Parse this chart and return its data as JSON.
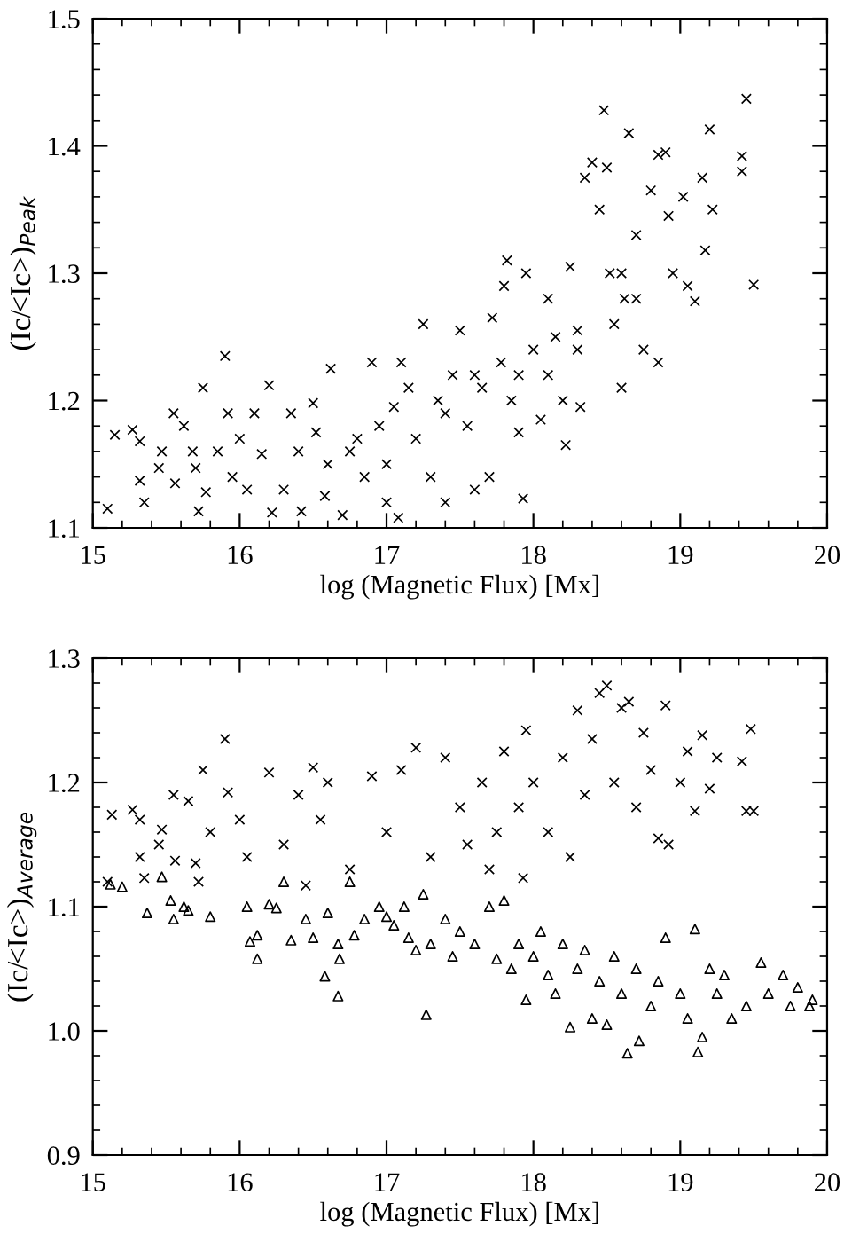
{
  "chart_data": [
    {
      "type": "scatter",
      "xlabel": "log (Magnetic Flux) [Mx]",
      "ylabel": "(Ic/<Ic>)$_{Peak}$",
      "xlim": [
        15,
        20
      ],
      "ylim": [
        1.1,
        1.5
      ],
      "xticks": [
        15,
        16,
        17,
        18,
        19,
        20
      ],
      "yticks": [
        1.1,
        1.2,
        1.3,
        1.4,
        1.5
      ],
      "grid": false,
      "legend": false,
      "series": [
        {
          "color": "#000000",
          "marker": "cross",
          "x": [
            15.1,
            15.15,
            15.27,
            15.32,
            15.32,
            15.35,
            15.45,
            15.47,
            15.55,
            15.56,
            15.62,
            15.68,
            15.7,
            15.72,
            15.75,
            15.77,
            15.85,
            15.9,
            15.92,
            15.95,
            16.0,
            16.05,
            16.1,
            16.15,
            16.2,
            16.22,
            16.3,
            16.35,
            16.4,
            16.42,
            16.5,
            16.52,
            16.58,
            16.62,
            16.7,
            16.75,
            16.85,
            16.9,
            16.95,
            17.0,
            17.05,
            17.08,
            17.1,
            17.15,
            17.25,
            17.3,
            17.35,
            17.4,
            17.45,
            17.5,
            17.55,
            17.6,
            17.65,
            17.7,
            17.72,
            17.78,
            17.8,
            17.82,
            17.85,
            17.9,
            17.93,
            17.95,
            18.0,
            18.05,
            18.1,
            18.15,
            18.2,
            18.22,
            18.25,
            18.3,
            18.32,
            18.35,
            18.4,
            18.45,
            18.48,
            18.5,
            18.52,
            18.55,
            18.6,
            18.62,
            18.65,
            18.7,
            18.75,
            18.8,
            18.85,
            18.85,
            18.9,
            18.92,
            18.95,
            19.02,
            19.05,
            19.1,
            19.15,
            19.17,
            19.2,
            19.22,
            19.42,
            19.42,
            19.45,
            19.5,
            16.6,
            16.8,
            17.0,
            17.2,
            17.4,
            17.6,
            17.9,
            18.1,
            18.3,
            18.6,
            18.7
          ],
          "values": [
            1.115,
            1.173,
            1.177,
            1.168,
            1.137,
            1.12,
            1.147,
            1.16,
            1.19,
            1.135,
            1.18,
            1.16,
            1.147,
            1.113,
            1.21,
            1.128,
            1.16,
            1.235,
            1.19,
            1.14,
            1.17,
            1.13,
            1.19,
            1.158,
            1.212,
            1.112,
            1.13,
            1.19,
            1.16,
            1.113,
            1.198,
            1.175,
            1.125,
            1.225,
            1.11,
            1.16,
            1.14,
            1.23,
            1.18,
            1.15,
            1.195,
            1.108,
            1.23,
            1.21,
            1.26,
            1.14,
            1.2,
            1.12,
            1.22,
            1.255,
            1.18,
            1.13,
            1.21,
            1.14,
            1.265,
            1.23,
            1.29,
            1.31,
            1.2,
            1.175,
            1.123,
            1.3,
            1.24,
            1.185,
            1.28,
            1.25,
            1.2,
            1.165,
            1.305,
            1.255,
            1.195,
            1.375,
            1.387,
            1.35,
            1.428,
            1.383,
            1.3,
            1.26,
            1.21,
            1.28,
            1.41,
            1.33,
            1.24,
            1.365,
            1.393,
            1.23,
            1.395,
            1.345,
            1.3,
            1.36,
            1.29,
            1.278,
            1.375,
            1.318,
            1.413,
            1.35,
            1.392,
            1.38,
            1.437,
            1.291,
            1.15,
            1.17,
            1.12,
            1.17,
            1.19,
            1.22,
            1.22,
            1.22,
            1.24,
            1.3,
            1.28
          ]
        }
      ]
    },
    {
      "type": "scatter",
      "xlabel": "log (Magnetic Flux) [Mx]",
      "ylabel": "(Ic/<Ic>)$_{Average}$",
      "xlim": [
        15,
        20
      ],
      "ylim": [
        0.9,
        1.3
      ],
      "xticks": [
        15,
        16,
        17,
        18,
        19,
        20
      ],
      "yticks": [
        0.9,
        {
          "value": 1.0,
          "label": "1.0"
        },
        1.1,
        1.2,
        1.3
      ],
      "grid": false,
      "legend": false,
      "series": [
        {
          "color": "#000000",
          "marker": "cross",
          "x": [
            15.1,
            15.13,
            15.27,
            15.32,
            15.32,
            15.35,
            15.45,
            15.47,
            15.55,
            15.56,
            15.65,
            15.7,
            15.72,
            15.75,
            15.8,
            15.9,
            15.92,
            16.0,
            16.05,
            16.2,
            16.3,
            16.4,
            16.45,
            16.5,
            16.55,
            16.6,
            16.75,
            16.9,
            17.0,
            17.1,
            17.2,
            17.3,
            17.4,
            17.5,
            17.55,
            17.65,
            17.7,
            17.75,
            17.8,
            17.9,
            17.95,
            17.93,
            18.0,
            18.1,
            18.2,
            18.25,
            18.3,
            18.35,
            18.4,
            18.45,
            18.5,
            18.55,
            18.6,
            18.65,
            18.7,
            18.75,
            18.8,
            18.85,
            18.9,
            18.92,
            19.0,
            19.05,
            19.1,
            19.15,
            19.2,
            19.25,
            19.42,
            19.45,
            19.48,
            19.5
          ],
          "values": [
            1.12,
            1.174,
            1.178,
            1.17,
            1.14,
            1.123,
            1.15,
            1.162,
            1.19,
            1.137,
            1.185,
            1.135,
            1.12,
            1.21,
            1.16,
            1.235,
            1.192,
            1.17,
            1.14,
            1.208,
            1.15,
            1.19,
            1.117,
            1.212,
            1.17,
            1.2,
            1.13,
            1.205,
            1.16,
            1.21,
            1.228,
            1.14,
            1.22,
            1.18,
            1.15,
            1.2,
            1.13,
            1.16,
            1.225,
            1.18,
            1.242,
            1.123,
            1.2,
            1.16,
            1.22,
            1.14,
            1.258,
            1.19,
            1.235,
            1.272,
            1.278,
            1.2,
            1.26,
            1.265,
            1.18,
            1.24,
            1.21,
            1.155,
            1.262,
            1.15,
            1.2,
            1.225,
            1.177,
            1.238,
            1.195,
            1.22,
            1.217,
            1.177,
            1.243,
            1.177
          ]
        },
        {
          "color": "#000000",
          "marker": "triangle",
          "x": [
            15.12,
            15.2,
            15.37,
            15.47,
            15.53,
            15.55,
            15.62,
            15.65,
            15.8,
            16.05,
            16.07,
            16.12,
            16.12,
            16.2,
            16.25,
            16.3,
            16.35,
            16.45,
            16.5,
            16.58,
            16.6,
            16.67,
            16.67,
            16.68,
            16.75,
            16.78,
            16.85,
            16.95,
            17.0,
            17.05,
            17.12,
            17.15,
            17.2,
            17.25,
            17.27,
            17.3,
            17.4,
            17.45,
            17.5,
            17.6,
            17.7,
            17.75,
            17.8,
            17.85,
            17.9,
            17.95,
            18.0,
            18.05,
            18.1,
            18.15,
            18.2,
            18.25,
            18.3,
            18.35,
            18.4,
            18.45,
            18.5,
            18.55,
            18.6,
            18.64,
            18.7,
            18.72,
            18.8,
            18.85,
            18.9,
            19.0,
            19.05,
            19.1,
            19.12,
            19.15,
            19.2,
            19.25,
            19.3,
            19.35,
            19.45,
            19.55,
            19.6,
            19.7,
            19.75,
            19.8,
            19.88,
            19.9
          ],
          "values": [
            1.118,
            1.116,
            1.095,
            1.124,
            1.105,
            1.09,
            1.1,
            1.097,
            1.092,
            1.1,
            1.072,
            1.077,
            1.058,
            1.102,
            1.099,
            1.12,
            1.073,
            1.09,
            1.075,
            1.044,
            1.095,
            1.07,
            1.028,
            1.058,
            1.12,
            1.077,
            1.09,
            1.1,
            1.092,
            1.085,
            1.1,
            1.075,
            1.065,
            1.11,
            1.013,
            1.07,
            1.09,
            1.06,
            1.08,
            1.07,
            1.1,
            1.058,
            1.105,
            1.05,
            1.07,
            1.025,
            1.06,
            1.08,
            1.045,
            1.03,
            1.07,
            1.003,
            1.05,
            1.065,
            1.01,
            1.04,
            1.005,
            1.06,
            1.03,
            0.982,
            1.05,
            0.992,
            1.02,
            1.04,
            1.075,
            1.03,
            1.01,
            1.082,
            0.983,
            0.995,
            1.05,
            1.03,
            1.045,
            1.01,
            1.02,
            1.055,
            1.03,
            1.045,
            1.02,
            1.035,
            1.02,
            1.025
          ]
        }
      ]
    }
  ]
}
